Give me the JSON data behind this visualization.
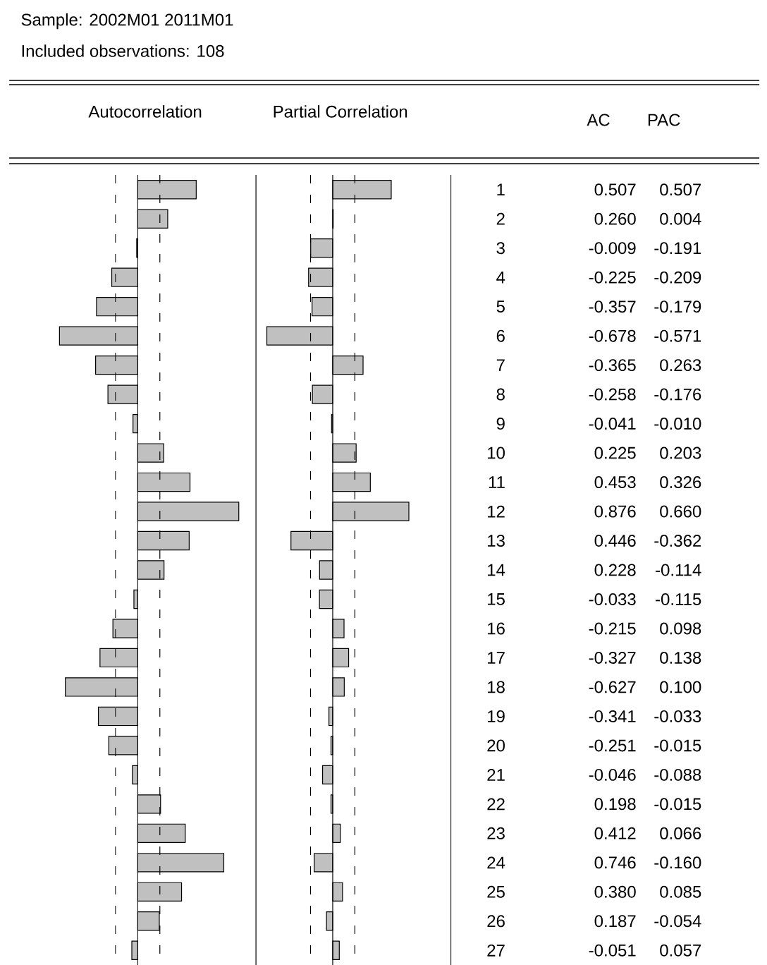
{
  "chart_data": [
    {
      "type": "bar",
      "orientation": "horizontal",
      "title": "Autocorrelation",
      "annotations": [
        "Sample: 2002M01   2011M01",
        "Included observations: 108",
        "AC"
      ],
      "categories": [
        "1",
        "2",
        "3",
        "4",
        "5",
        "6",
        "7",
        "8",
        "9",
        "10",
        "11",
        "12",
        "13",
        "14",
        "15",
        "16",
        "17",
        "18",
        "19",
        "20",
        "21",
        "22",
        "23",
        "24",
        "25",
        "26",
        "27"
      ],
      "values": [
        0.507,
        0.26,
        -0.009,
        -0.225,
        -0.357,
        -0.678,
        -0.365,
        -0.258,
        -0.041,
        0.225,
        0.453,
        0.876,
        0.446,
        0.228,
        -0.033,
        -0.215,
        -0.327,
        -0.627,
        -0.341,
        -0.251,
        -0.046,
        0.198,
        0.412,
        0.746,
        0.38,
        0.187,
        -0.051
      ],
      "value_labels": [
        "0.507",
        "0.260",
        "-0.009",
        "-0.225",
        "-0.357",
        "-0.678",
        "-0.365",
        "-0.258",
        "-0.041",
        "0.225",
        "0.453",
        "0.876",
        "0.446",
        "0.228",
        "-0.033",
        "-0.215",
        "-0.327",
        "-0.627",
        "-0.341",
        "-0.251",
        "-0.046",
        "0.198",
        "0.412",
        "0.746",
        "0.380",
        "0.187",
        "-0.051"
      ],
      "color": "#c0c0c0",
      "tick_labels": false,
      "ref_lines": [
        {
          "axis": "x",
          "value": -0.192,
          "line_style": "dashed",
          "color": "#000000"
        },
        {
          "axis": "x",
          "value": 0.192,
          "line_style": "dashed",
          "color": "#000000"
        }
      ]
    },
    {
      "type": "bar",
      "orientation": "horizontal",
      "title": "Partial Correlation",
      "annotations": [
        "PAC"
      ],
      "categories": [
        "1",
        "2",
        "3",
        "4",
        "5",
        "6",
        "7",
        "8",
        "9",
        "10",
        "11",
        "12",
        "13",
        "14",
        "15",
        "16",
        "17",
        "18",
        "19",
        "20",
        "21",
        "22",
        "23",
        "24",
        "25",
        "26",
        "27"
      ],
      "values": [
        0.507,
        0.004,
        -0.191,
        -0.209,
        -0.179,
        -0.571,
        0.263,
        -0.176,
        -0.01,
        0.203,
        0.326,
        0.66,
        -0.362,
        -0.114,
        -0.115,
        0.098,
        0.138,
        0.1,
        -0.033,
        -0.015,
        -0.088,
        -0.015,
        0.066,
        -0.16,
        0.085,
        -0.054,
        0.057
      ],
      "value_labels": [
        "0.507",
        "0.004",
        "-0.191",
        "-0.209",
        "-0.179",
        "-0.571",
        "0.263",
        "-0.176",
        "-0.010",
        "0.203",
        "0.326",
        "0.660",
        "-0.362",
        "-0.114",
        "-0.115",
        "0.098",
        "0.138",
        "0.100",
        "-0.033",
        "-0.015",
        "-0.088",
        "-0.015",
        "0.066",
        "-0.160",
        "0.085",
        "-0.054",
        "0.057"
      ],
      "color": "#c0c0c0",
      "tick_labels": "y",
      "ref_lines": [
        {
          "axis": "x",
          "value": -0.192,
          "line_style": "dashed",
          "color": "#000000"
        },
        {
          "axis": "x",
          "value": 0.192,
          "line_style": "dashed",
          "color": "#000000"
        }
      ]
    }
  ]
}
